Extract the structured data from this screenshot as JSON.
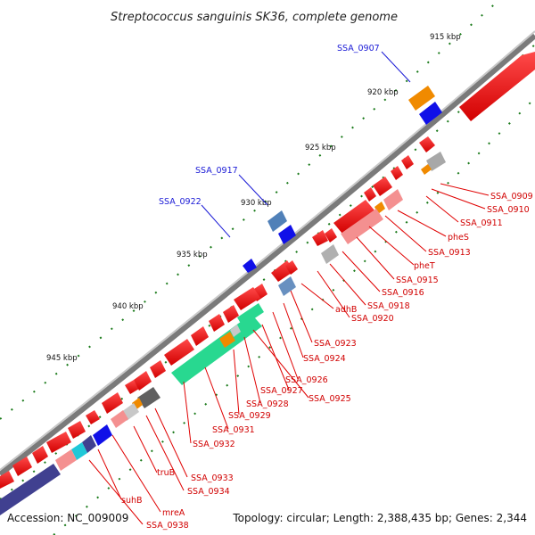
{
  "title": "Streptococcus sanguinis SK36, complete genome",
  "footer": {
    "accession": "Accession: NC_009009",
    "topology": "Topology: circular; Length: 2,388,435 bp; Genes: 2,344"
  },
  "colors": {
    "backbone": "#8a8a8a",
    "forward_gene": "#ee1111",
    "reverse_gene": "#ee1111",
    "label_red": "#d10000",
    "label_blue": "#1a1ad6",
    "tick_green": "#1a7a1a"
  },
  "kbp_ticks": [
    "915 kbp",
    "920 kbp",
    "925 kbp",
    "930 kbp",
    "935 kbp",
    "940 kbp",
    "945 kbp"
  ],
  "blue_labels": [
    "SSA_0907",
    "SSA_0917",
    "SSA_0922"
  ],
  "red_labels": [
    "SSA_0909",
    "SSA_0910",
    "SSA_0911",
    "pheS",
    "SSA_0913",
    "pheT",
    "SSA_0915",
    "SSA_0916",
    "SSA_0918",
    "adhB",
    "SSA_0920",
    "SSA_0923",
    "SSA_0924",
    "SSA_0926",
    "SSA_0927",
    "SSA_0925",
    "SSA_0928",
    "SSA_0929",
    "SSA_0931",
    "SSA_0932",
    "truB",
    "SSA_0933",
    "SSA_0934",
    "suhB",
    "mreA",
    "SSA_0938"
  ]
}
